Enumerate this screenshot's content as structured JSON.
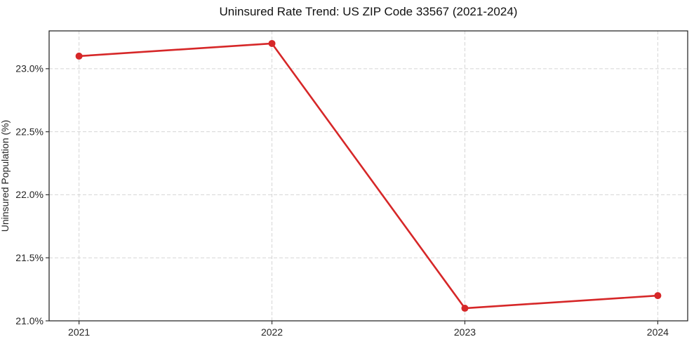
{
  "title": "Uninsured Rate Trend: US ZIP Code 33567 (2021-2024)",
  "colors": {
    "line": "#d62728",
    "marker": "#d62728",
    "grid": "#d5d5d5",
    "spine": "#1a1a1a",
    "tick": "#333333",
    "tick_text": "#262626",
    "title_text": "#111111",
    "background": "#ffffff"
  },
  "chart_data": {
    "type": "line",
    "title": "Uninsured Rate Trend: US ZIP Code 33567 (2021-2024)",
    "xlabel": "",
    "ylabel": "Uninsured Population (%)",
    "x": [
      2021,
      2022,
      2023,
      2024
    ],
    "xtick_labels": [
      "2021",
      "2022",
      "2023",
      "2024"
    ],
    "series": [
      {
        "name": "Uninsured Population (%)",
        "values": [
          23.1,
          23.2,
          21.1,
          21.2
        ],
        "color": "#d62728",
        "marker": "circle"
      }
    ],
    "xlim": [
      2020.845,
      2024.155
    ],
    "ylim": [
      21.0,
      23.3
    ],
    "yticks": [
      21.0,
      21.5,
      22.0,
      22.5,
      23.0
    ],
    "ytick_labels": [
      "21.0%",
      "21.5%",
      "22.0%",
      "22.5%",
      "23.0%"
    ],
    "grid": true,
    "grid_style": "dashed",
    "legend_position": "none"
  }
}
